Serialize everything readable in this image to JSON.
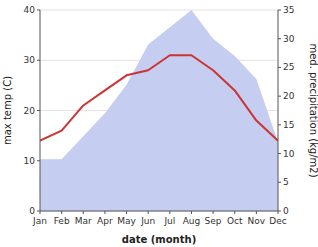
{
  "chart_data": {
    "type": "line",
    "xlabel": "date (month)",
    "ylabel": "max temp (C)",
    "y2label": "med. precipitation (kg/m2)",
    "categories": [
      "Jan",
      "Feb",
      "Mar",
      "Apr",
      "May",
      "Jun",
      "Jul",
      "Aug",
      "Sep",
      "Oct",
      "Nov",
      "Dec"
    ],
    "series": [
      {
        "type": "area",
        "axis": "y2",
        "color": "#c5cdf0",
        "values": [
          9,
          9,
          13,
          17,
          22,
          29,
          32,
          35,
          30,
          27,
          23,
          12
        ]
      },
      {
        "type": "line",
        "color": "#cc3333",
        "values": [
          14,
          16,
          21,
          24,
          27,
          28,
          31,
          31,
          28,
          24,
          18,
          14
        ]
      }
    ],
    "ylim": [
      0,
      40
    ],
    "yticks": [
      0,
      10,
      20,
      30,
      40
    ],
    "y2lim": [
      0,
      35
    ],
    "y2ticks": [
      0,
      5,
      10,
      15,
      20,
      25,
      30,
      35
    ],
    "grid": true
  }
}
